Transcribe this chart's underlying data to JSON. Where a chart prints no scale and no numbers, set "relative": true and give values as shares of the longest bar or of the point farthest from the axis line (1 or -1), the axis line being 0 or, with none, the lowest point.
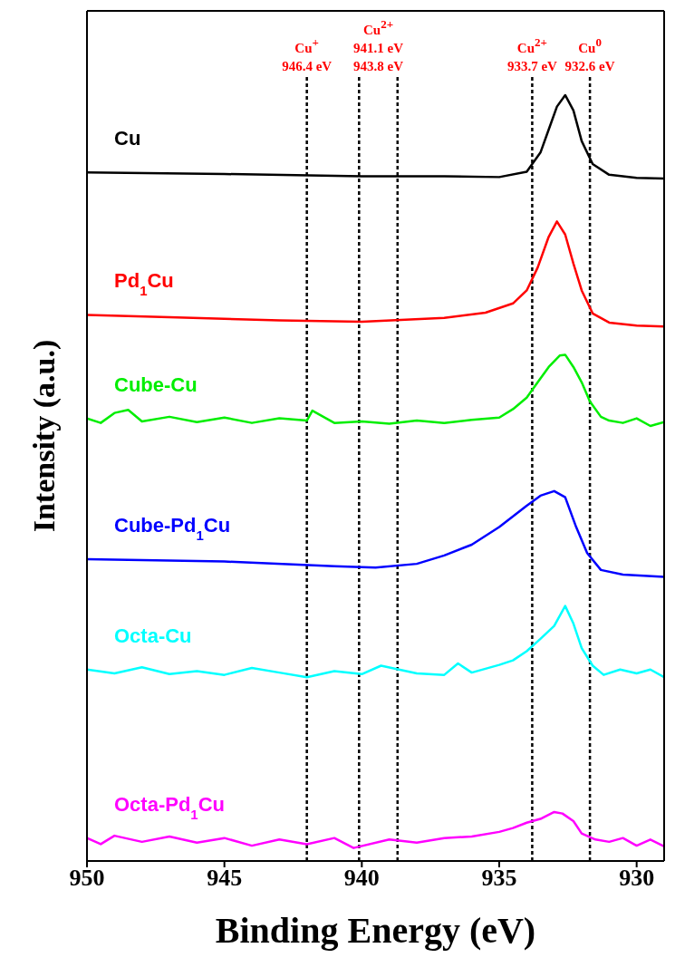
{
  "chart_data": {
    "type": "line",
    "relative": true,
    "xlabel": "Binding Energy (eV)",
    "ylabel": "Intensity (a.u.)",
    "xlim": [
      950,
      929
    ],
    "xticks": [
      950,
      945,
      940,
      935,
      930
    ],
    "marker": "none",
    "line_style": "solid",
    "series": [
      {
        "name": "Cu",
        "color": "#000000",
        "x": [
          950,
          945,
          940,
          937,
          935,
          934,
          933.5,
          933.2,
          932.9,
          932.6,
          932.3,
          932.0,
          931.6,
          931.0,
          930,
          929
        ],
        "values": [
          0.899,
          0.897,
          0.894,
          0.894,
          0.893,
          0.9,
          0.925,
          0.955,
          0.985,
          1.0,
          0.98,
          0.94,
          0.91,
          0.896,
          0.892,
          0.891
        ]
      },
      {
        "name": "Pd$_{1}$Cu",
        "color": "#ff0000",
        "x": [
          950,
          947,
          943,
          940,
          937,
          935.5,
          934.5,
          934,
          933.6,
          933.2,
          932.9,
          932.6,
          932.3,
          932.0,
          931.6,
          931,
          930,
          929
        ],
        "values": [
          0.713,
          0.71,
          0.706,
          0.704,
          0.709,
          0.716,
          0.728,
          0.745,
          0.775,
          0.815,
          0.835,
          0.818,
          0.78,
          0.745,
          0.715,
          0.703,
          0.699,
          0.698
        ]
      },
      {
        "name": "Cube-Cu",
        "color": "#00ee00",
        "x": [
          950,
          949.5,
          949,
          948.5,
          948,
          947,
          946,
          945,
          944,
          943,
          942,
          941.8,
          941,
          940,
          939,
          938,
          937,
          936,
          935,
          934.5,
          934,
          933.6,
          933.2,
          932.8,
          932.6,
          932.3,
          932.0,
          931.7,
          931.3,
          931,
          930.5,
          930,
          929.5,
          929
        ],
        "values": [
          0.578,
          0.572,
          0.585,
          0.589,
          0.574,
          0.58,
          0.573,
          0.579,
          0.572,
          0.578,
          0.575,
          0.588,
          0.572,
          0.574,
          0.571,
          0.575,
          0.572,
          0.576,
          0.579,
          0.59,
          0.605,
          0.625,
          0.645,
          0.66,
          0.661,
          0.645,
          0.625,
          0.6,
          0.58,
          0.575,
          0.572,
          0.578,
          0.568,
          0.573
        ]
      },
      {
        "name": "Cube-Pd$_{1}$Cu",
        "color": "#0000ff",
        "x": [
          950,
          945,
          941,
          939.5,
          938,
          937,
          936,
          935,
          934,
          933.5,
          933,
          932.6,
          932.2,
          931.8,
          931.3,
          930.5,
          929
        ],
        "values": [
          0.394,
          0.391,
          0.385,
          0.383,
          0.388,
          0.399,
          0.413,
          0.436,
          0.464,
          0.477,
          0.483,
          0.475,
          0.436,
          0.402,
          0.38,
          0.374,
          0.371
        ]
      },
      {
        "name": "Octa-Cu",
        "color": "#00ffff",
        "x": [
          950,
          949,
          948,
          947,
          946,
          945,
          944,
          943,
          942,
          941,
          940,
          939.3,
          938,
          937,
          936.5,
          936,
          935,
          934.5,
          934,
          933.5,
          933,
          932.6,
          932.3,
          932,
          931.6,
          931.2,
          930.6,
          930,
          929.5,
          929
        ],
        "values": [
          0.25,
          0.245,
          0.253,
          0.244,
          0.248,
          0.243,
          0.252,
          0.246,
          0.24,
          0.248,
          0.244,
          0.255,
          0.245,
          0.243,
          0.258,
          0.246,
          0.256,
          0.262,
          0.274,
          0.29,
          0.307,
          0.333,
          0.31,
          0.278,
          0.255,
          0.243,
          0.25,
          0.245,
          0.25,
          0.24
        ]
      },
      {
        "name": "Octa-Pd$_{1}$Cu",
        "color": "#ff00ff",
        "x": [
          950,
          949.5,
          949,
          948,
          947,
          946,
          945,
          944,
          943,
          942,
          941,
          940.3,
          939,
          938,
          937,
          936,
          935,
          934.5,
          934,
          933.5,
          933,
          932.7,
          932.3,
          932,
          931.5,
          931,
          930.5,
          930,
          929.5,
          929
        ],
        "values": [
          0.03,
          0.022,
          0.033,
          0.025,
          0.032,
          0.024,
          0.03,
          0.02,
          0.028,
          0.022,
          0.03,
          0.017,
          0.028,
          0.024,
          0.03,
          0.032,
          0.038,
          0.043,
          0.05,
          0.055,
          0.064,
          0.062,
          0.052,
          0.036,
          0.028,
          0.025,
          0.03,
          0.02,
          0.028,
          0.019
        ]
      }
    ],
    "ref_lines": [
      {
        "axis": "x",
        "value": 942.0,
        "color": "#000000",
        "line_style": "dashed",
        "label": "Cu$^{+}$\n946.4 eV"
      },
      {
        "axis": "x",
        "value": 940.1,
        "color": "#000000",
        "line_style": "dashed",
        "label": "Cu$^{2+}$\n941.1 eV\n943.8 eV"
      },
      {
        "axis": "x",
        "value": 938.7,
        "color": "#000000",
        "line_style": "dashed"
      },
      {
        "axis": "x",
        "value": 933.8,
        "color": "#000000",
        "line_style": "dashed",
        "label": "Cu$^{2+}$\n933.7 eV"
      },
      {
        "axis": "x",
        "value": 931.7,
        "color": "#000000",
        "line_style": "dashed",
        "label": "Cu$^{0}$\n932.6 eV"
      }
    ]
  }
}
